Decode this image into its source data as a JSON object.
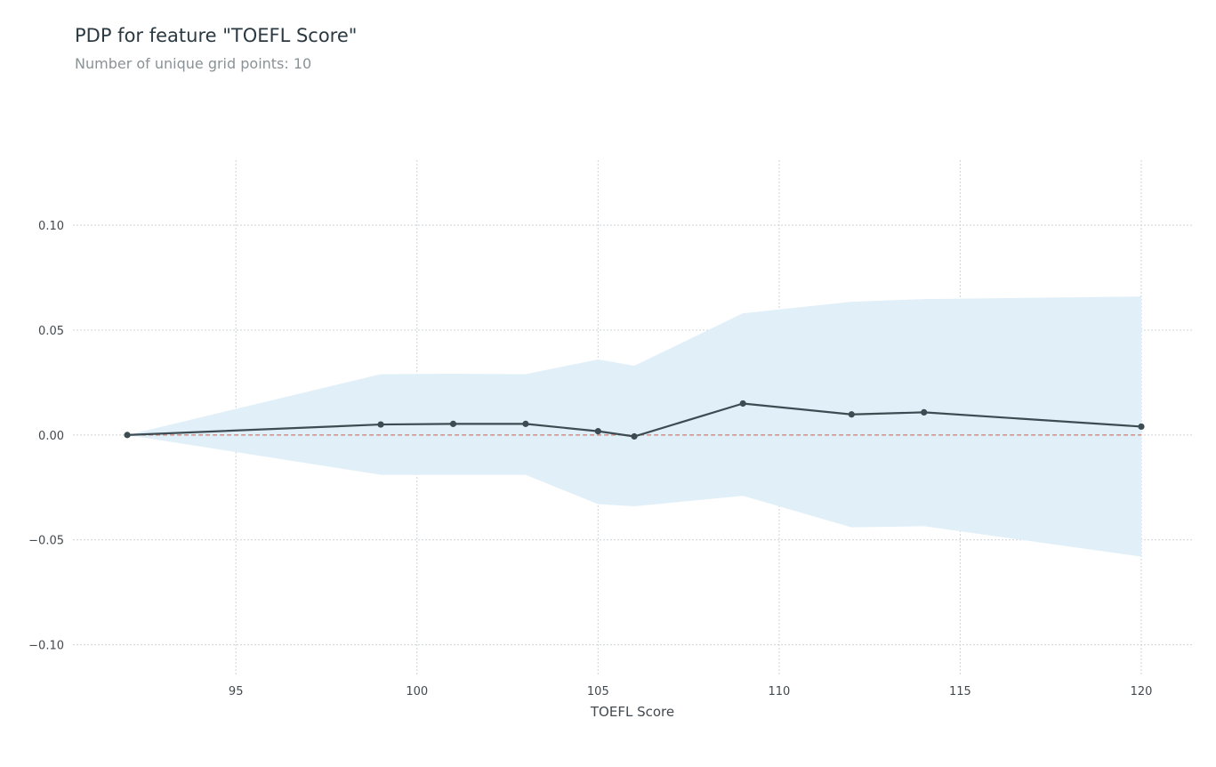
{
  "header": {
    "title": "PDP for feature \"TOEFL Score\"",
    "subtitle": "Number of unique grid points: 10"
  },
  "chart_data": {
    "type": "line",
    "title": "PDP for feature \"TOEFL Score\"",
    "subtitle": "Number of unique grid points: 10",
    "xlabel": "TOEFL Score",
    "ylabel": "",
    "xlim": [
      90.5,
      121.4
    ],
    "ylim": [
      -0.115,
      0.131
    ],
    "xticks": [
      95,
      100,
      105,
      110,
      115,
      120
    ],
    "xtick_labels": [
      "95",
      "100",
      "105",
      "110",
      "115",
      "120"
    ],
    "yticks": [
      0.1,
      0.05,
      0.0,
      -0.05,
      -0.1
    ],
    "ytick_labels": [
      "0.10",
      "0.05",
      "0.00",
      "−0.05",
      "−0.10"
    ],
    "grid": true,
    "x": [
      92,
      99,
      101,
      103,
      105,
      106,
      109,
      112,
      114,
      120
    ],
    "series": [
      {
        "values": [
          0.0,
          0.005,
          0.0053,
          0.0053,
          0.0018,
          -0.0007,
          0.015,
          0.0098,
          0.0108,
          0.004
        ]
      }
    ],
    "band": {
      "upper": [
        0.0,
        0.029,
        0.0292,
        0.029,
        0.036,
        0.033,
        0.058,
        0.0635,
        0.0648,
        0.066
      ],
      "lower": [
        0.0,
        -0.019,
        -0.019,
        -0.019,
        -0.033,
        -0.034,
        -0.029,
        -0.044,
        -0.0435,
        -0.058
      ]
    },
    "reference_line": {
      "y": 0.0,
      "style": "dashed"
    },
    "colors": {
      "line": "#3d4b52",
      "band": "#e1f0f8",
      "reference": "#d07a6a",
      "grid": "#cfd4d7",
      "text": "#424a50"
    }
  }
}
